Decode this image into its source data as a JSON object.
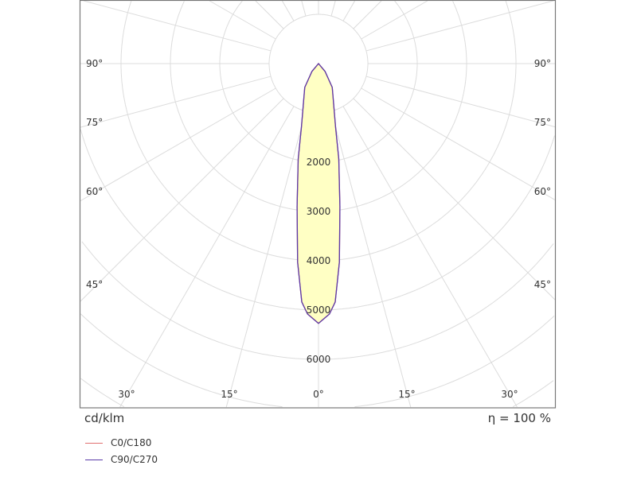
{
  "chart_data": {
    "type": "polar",
    "unit_label": "cd/klm",
    "efficiency_label": "η = 100 %",
    "radial_tick_labels": [
      "2000",
      "3000",
      "4000",
      "5000",
      "6000"
    ],
    "radial_ticks": [
      2000,
      3000,
      4000,
      5000,
      6000
    ],
    "radial_grid_step": 1000,
    "angle_grid_step_deg": 15,
    "angle_labels_bottom": [
      "30°",
      "15°",
      "0°",
      "15°",
      "30°"
    ],
    "angle_labels_left": [
      "90°",
      "75°",
      "60°",
      "45°"
    ],
    "angle_labels_right": [
      "90°",
      "75°",
      "60°",
      "45°"
    ],
    "grid": true,
    "fill_color": "#ffffc4",
    "series": [
      {
        "name": "C0/C180",
        "color": "#e07070",
        "angles_deg": [
          0,
          2.5,
          4,
          6,
          8.5,
          12,
          15,
          30,
          40,
          90
        ],
        "values": [
          5270,
          5085,
          4850,
          4050,
          2935,
          1977,
          1338,
          557,
          206,
          0
        ]
      },
      {
        "name": "C90/C270",
        "color": "#5a3aa8",
        "angles_deg": [
          0,
          2.5,
          4,
          6,
          8.5,
          12,
          15,
          30,
          40,
          90
        ],
        "values": [
          5270,
          5085,
          4850,
          4050,
          2935,
          1977,
          1338,
          557,
          206,
          0
        ]
      }
    ]
  }
}
